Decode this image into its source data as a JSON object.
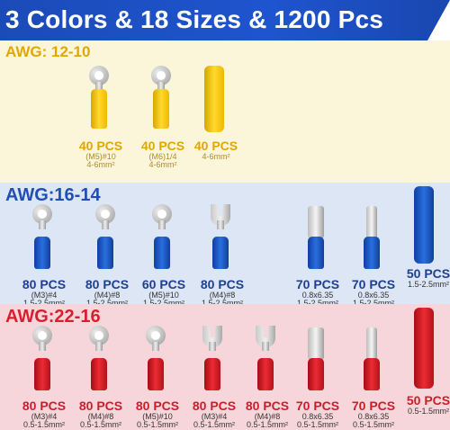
{
  "header": {
    "title": "3 Colors & 18 Sizes & 1200 Pcs"
  },
  "sections": {
    "yellow": {
      "label": "AWG:  12-10",
      "items": [
        {
          "qty": "40 PCS",
          "size": "(M5)#10",
          "range": "4-6mm²"
        },
        {
          "qty": "40 PCS",
          "size": "(M6)1/4",
          "range": "4-6mm²"
        },
        {
          "qty": "40 PCS",
          "size": "",
          "range": "4-6mm²"
        }
      ]
    },
    "blue": {
      "label": "AWG:16-14",
      "items": [
        {
          "qty": "80 PCS",
          "size": "(M3)#4",
          "range": "1.5-2.5mm²"
        },
        {
          "qty": "80 PCS",
          "size": "(M4)#8",
          "range": "1.5-2.5mm²"
        },
        {
          "qty": "60 PCS",
          "size": "(M5)#10",
          "range": "1.5-2.5mm²"
        },
        {
          "qty": "80 PCS",
          "size": "(M4)#8",
          "range": "1.5-2.5mm²"
        },
        {
          "qty": "70 PCS",
          "size": "0.8x6.35",
          "range": "1.5-2.5mm²"
        },
        {
          "qty": "70 PCS",
          "size": "0.8x6.35",
          "range": "1.5-2.5mm²"
        },
        {
          "qty": "50 PCS",
          "size": "",
          "range": "1.5-2.5mm²"
        }
      ]
    },
    "red": {
      "label": "AWG:22-16",
      "items": [
        {
          "qty": "80 PCS",
          "size": "(M3)#4",
          "range": "0.5-1.5mm²"
        },
        {
          "qty": "80 PCS",
          "size": "(M4)#8",
          "range": "0.5-1.5mm²"
        },
        {
          "qty": "80 PCS",
          "size": "(M5)#10",
          "range": "0.5-1.5mm²"
        },
        {
          "qty": "80 PCS",
          "size": "(M3)#4",
          "range": "0.5-1.5mm²"
        },
        {
          "qty": "80 PCS",
          "size": "(M4)#8",
          "range": "0.5-1.5mm²"
        },
        {
          "qty": "70 PCS",
          "size": "0.8x6.35",
          "range": "0.5-1.5mm²"
        },
        {
          "qty": "70 PCS",
          "size": "0.8x6.35",
          "range": "0.5-1.5mm²"
        },
        {
          "qty": "50 PCS",
          "size": "",
          "range": "0.5-1.5mm²"
        }
      ]
    }
  }
}
